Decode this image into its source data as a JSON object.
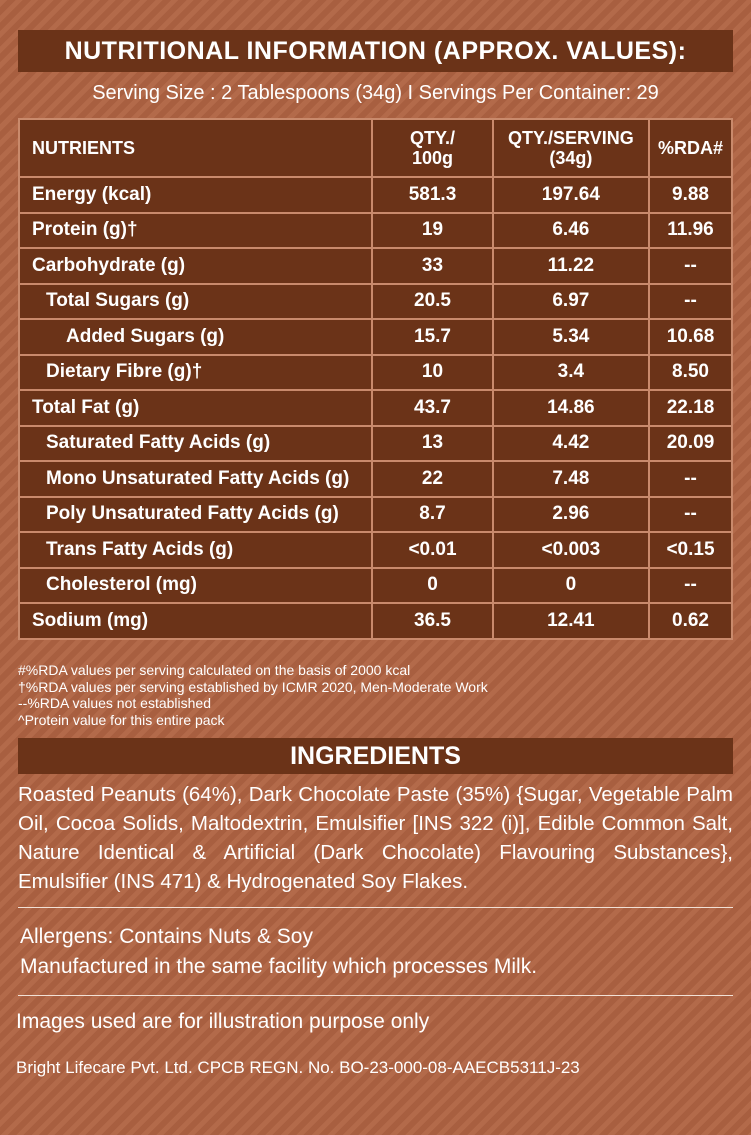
{
  "header": {
    "title": "NUTRITIONAL INFORMATION (APPROX. VALUES):",
    "serving": "Serving Size : 2 Tablespoons (34g) I Servings Per Container: 29"
  },
  "table": {
    "columns": [
      "NUTRIENTS",
      "QTY./\n100g",
      "QTY./SERVING\n(34g)",
      "%RDA#"
    ],
    "rows": [
      {
        "name": "Energy (kcal)",
        "q100": "581.3",
        "qserv": "197.64",
        "rda": "9.88"
      },
      {
        "name": "Protein (g)†",
        "q100": "19",
        "qserv": "6.46",
        "rda": "11.96"
      },
      {
        "name": "Carbohydrate (g)",
        "q100": "33",
        "qserv": "11.22",
        "rda": "--"
      },
      {
        "name": "Total Sugars (g)",
        "q100": "20.5",
        "qserv": "6.97",
        "rda": "--"
      },
      {
        "name": "Added Sugars (g)",
        "q100": "15.7",
        "qserv": "5.34",
        "rda": "10.68"
      },
      {
        "name": "Dietary Fibre (g)†",
        "q100": "10",
        "qserv": "3.4",
        "rda": "8.50"
      },
      {
        "name": "Total Fat (g)",
        "q100": "43.7",
        "qserv": "14.86",
        "rda": "22.18"
      },
      {
        "name": "Saturated Fatty Acids (g)",
        "q100": "13",
        "qserv": "4.42",
        "rda": "20.09"
      },
      {
        "name": "Mono Unsaturated Fatty Acids (g)",
        "q100": "22",
        "qserv": "7.48",
        "rda": "--"
      },
      {
        "name": "Poly Unsaturated Fatty Acids (g)",
        "q100": "8.7",
        "qserv": "2.96",
        "rda": "--"
      },
      {
        "name": "Trans Fatty Acids (g)",
        "q100": "<0.01",
        "qserv": "<0.003",
        "rda": "<0.15"
      },
      {
        "name": "Cholesterol (mg)",
        "q100": "0",
        "qserv": "0",
        "rda": "--"
      },
      {
        "name": "Sodium (mg)",
        "q100": "36.5",
        "qserv": "12.41",
        "rda": "0.62"
      }
    ]
  },
  "footnotes": [
    "#%RDA values per serving calculated on the basis of 2000 kcal",
    "†%RDA values per serving established by ICMR 2020, Men-Moderate Work",
    "--%RDA values not established",
    "^Protein value for this entire pack"
  ],
  "ingredients": {
    "title": "INGREDIENTS",
    "text": "Roasted Peanuts (64%), Dark Chocolate Paste (35%) {Sugar, Vegetable Palm Oil, Cocoa Solids, Maltodextrin, Emulsifier [INS 322 (i)], Edible Common Salt, Nature Identical & Artificial (Dark Chocolate) Flavouring Substances}, Emulsifier (INS 471) & Hydrogenated Soy Flakes."
  },
  "allergens": {
    "line1": "Allergens: Contains Nuts & Soy",
    "line2": "Manufactured in the same facility which processes Milk."
  },
  "illustration_note": "Images used are for illustration purpose only",
  "registration": "Bright Lifecare Pvt. Ltd. CPCB REGN. No. BO-23-000-08-AAECB5311J-23",
  "colors": {
    "panel": "#6b3318",
    "background": "#b36a4a",
    "text": "#ffffff",
    "grid": "#c98a6c"
  }
}
